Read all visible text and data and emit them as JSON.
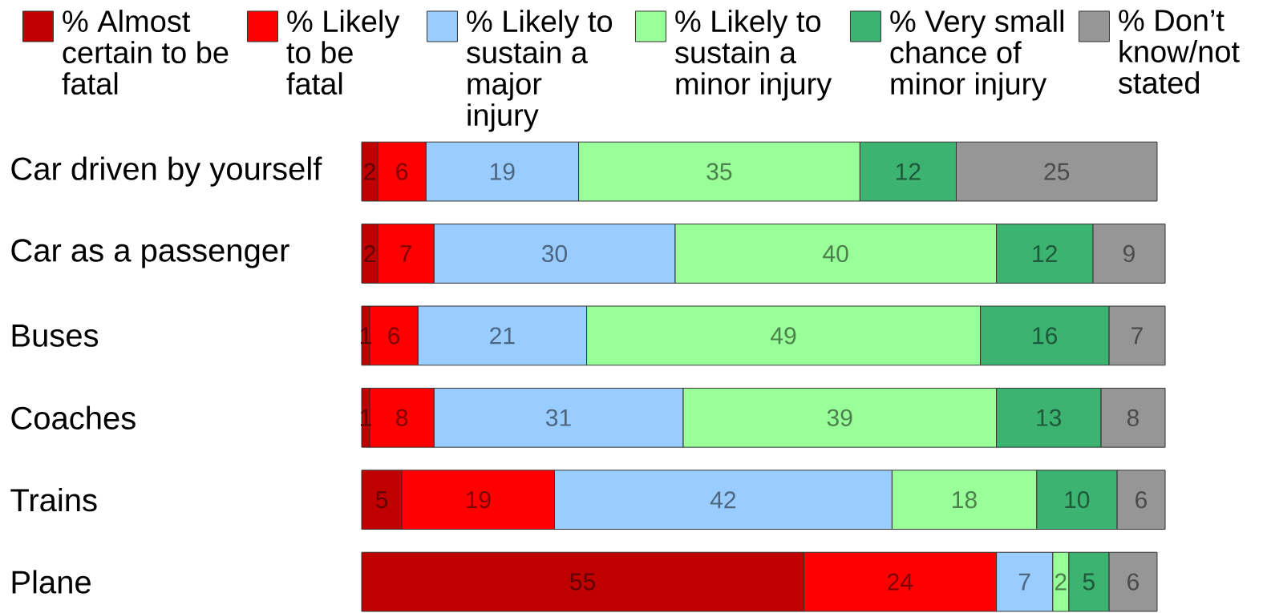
{
  "chart_data": {
    "type": "bar",
    "orientation": "horizontal",
    "stacked": true,
    "categories": [
      "Car driven by yourself",
      "Car as a passenger",
      "Buses",
      "Coaches",
      "Trains",
      "Plane"
    ],
    "series": [
      {
        "name": "% Almost certain to be fatal",
        "color": "#c00000",
        "values": [
          2,
          2,
          1,
          1,
          5,
          55
        ]
      },
      {
        "name": "% Likely to be fatal",
        "color": "#ff0000",
        "values": [
          6,
          7,
          6,
          8,
          19,
          24
        ]
      },
      {
        "name": "% Likely to sustain a major injury",
        "color": "#99ccff",
        "values": [
          19,
          30,
          21,
          31,
          42,
          7
        ]
      },
      {
        "name": "% Likely to sustain a minor injury",
        "color": "#99ff99",
        "values": [
          35,
          40,
          49,
          39,
          18,
          2
        ]
      },
      {
        "name": "% Very small chance of minor injury",
        "color": "#3cb371",
        "values": [
          12,
          12,
          16,
          13,
          10,
          5
        ]
      },
      {
        "name": "% Don’t know/not stated",
        "color": "#969696",
        "values": [
          25,
          9,
          7,
          8,
          6,
          6
        ]
      }
    ],
    "xlim": [
      0,
      100
    ],
    "data_labels": true,
    "legend": "top",
    "tick_labels": "y"
  }
}
